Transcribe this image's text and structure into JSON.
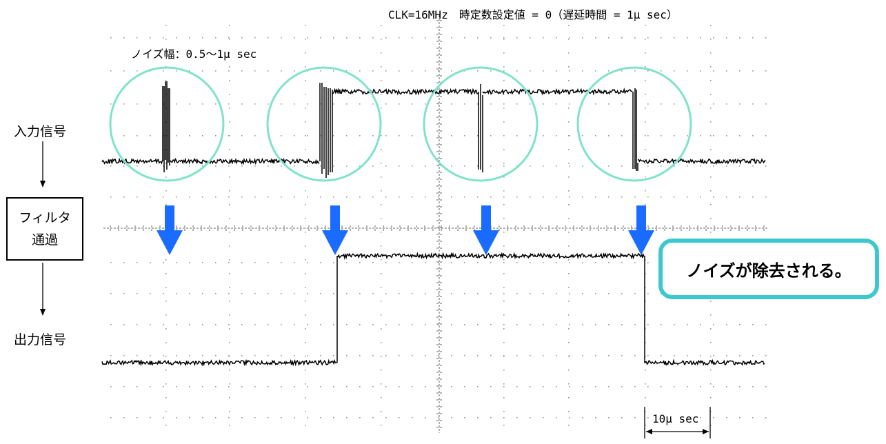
{
  "header": {
    "text": "CLK=16MHz　時定数設定値 = 0（遅延時間 = 1μ sec）"
  },
  "noise_width": "ノイズ幅：0.5〜1μ sec",
  "labels": {
    "input": "入力信号",
    "filter_line1": "フィルタ",
    "filter_line2": "通過",
    "output": "出力信号"
  },
  "callout": "ノイズが除去される。",
  "scale": "10μ sec",
  "colors": {
    "circle": "#7fe3c9",
    "arrow": "#1a6bff",
    "callout_border": "#3cc8cc",
    "trace": "#000000",
    "grid": "#999999"
  },
  "icons": {
    "down_arrow": "down-arrow-icon",
    "flow_arrow": "flow-arrow-icon"
  }
}
